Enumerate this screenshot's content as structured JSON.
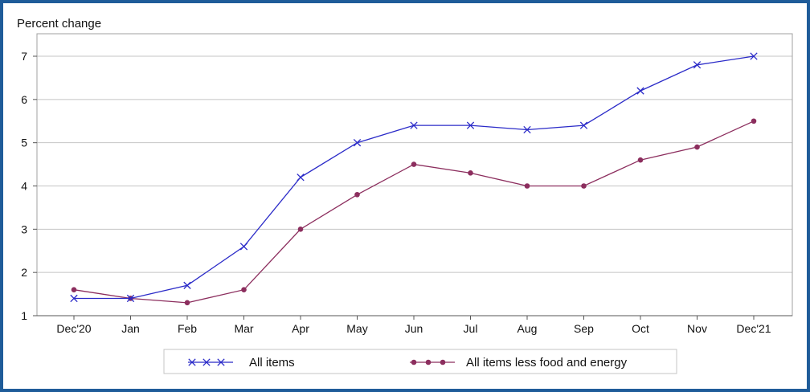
{
  "chart_data": {
    "type": "line",
    "title": "",
    "ylabel": "Percent change",
    "xlabel": "",
    "categories": [
      "Dec'20",
      "Jan",
      "Feb",
      "Mar",
      "Apr",
      "May",
      "Jun",
      "Jul",
      "Aug",
      "Sep",
      "Oct",
      "Nov",
      "Dec'21"
    ],
    "ylim": [
      1,
      7
    ],
    "yticks": [
      1,
      2,
      3,
      4,
      5,
      6,
      7
    ],
    "grid": "horizontal",
    "legend_position": "bottom",
    "series": [
      {
        "name": "All items",
        "color": "#2b2bc8",
        "marker": "x",
        "values": [
          1.4,
          1.4,
          1.7,
          2.6,
          4.2,
          5.0,
          5.4,
          5.4,
          5.3,
          5.4,
          6.2,
          6.8,
          7.0
        ]
      },
      {
        "name": "All items less food and energy",
        "color": "#8c2e5e",
        "marker": "dot",
        "values": [
          1.6,
          1.4,
          1.3,
          1.6,
          3.0,
          3.8,
          4.5,
          4.3,
          4.0,
          4.0,
          4.6,
          4.9,
          5.5
        ]
      }
    ]
  }
}
